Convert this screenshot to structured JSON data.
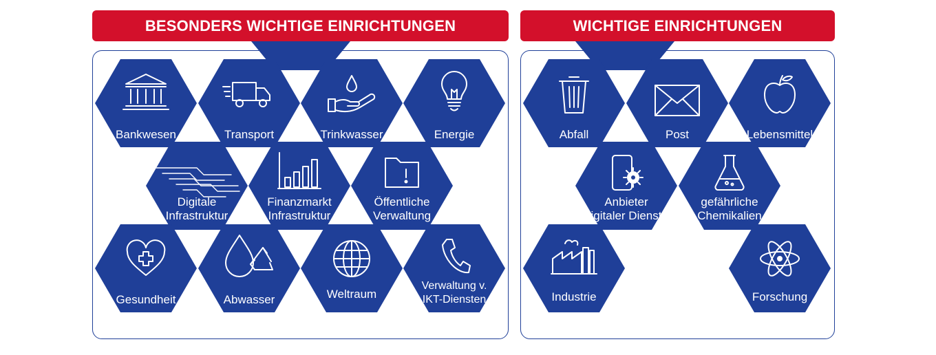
{
  "sections": {
    "left": {
      "title": "BESONDERS WICHTIGE EINRICHTUNGEN",
      "items": [
        {
          "id": "bankwesen",
          "lines": [
            "Bankwesen"
          ],
          "icon": "bank-icon"
        },
        {
          "id": "transport",
          "lines": [
            "Transport"
          ],
          "icon": "truck-icon"
        },
        {
          "id": "trinkwasser",
          "lines": [
            "Trinkwasser"
          ],
          "icon": "hand-water-drop-icon"
        },
        {
          "id": "energie",
          "lines": [
            "Energie"
          ],
          "icon": "light-bulb-icon"
        },
        {
          "id": "digitale-infrastruktur",
          "lines": [
            "Digitale",
            "Infrastruktur"
          ],
          "icon": "circuit-lines-icon"
        },
        {
          "id": "finanzmarkt-infrastruktur",
          "lines": [
            "Finanzmarkt",
            "Infrastruktur"
          ],
          "icon": "bar-chart-icon"
        },
        {
          "id": "oeffentliche-verwaltung",
          "lines": [
            "Öffentliche",
            "Verwaltung"
          ],
          "icon": "folder-alert-icon"
        },
        {
          "id": "gesundheit",
          "lines": [
            "Gesundheit"
          ],
          "icon": "heart-cross-icon"
        },
        {
          "id": "abwasser",
          "lines": [
            "Abwasser"
          ],
          "icon": "drop-recycle-icon"
        },
        {
          "id": "weltraum",
          "lines": [
            "Weltraum"
          ],
          "icon": "globe-icon"
        },
        {
          "id": "verwaltung-ikt",
          "lines": [
            "Verwaltung v.",
            "IKT-Diensten"
          ],
          "icon": "phone-icon"
        }
      ]
    },
    "right": {
      "title": "WICHTIGE EINRICHTUNGEN",
      "items": [
        {
          "id": "abfall",
          "lines": [
            "Abfall"
          ],
          "icon": "trash-can-icon"
        },
        {
          "id": "post",
          "lines": [
            "Post"
          ],
          "icon": "envelope-icon"
        },
        {
          "id": "lebensmittel",
          "lines": [
            "Lebensmittel"
          ],
          "icon": "apple-icon"
        },
        {
          "id": "anbieter-digitaler-dienste",
          "lines": [
            "Anbieter",
            "digitaler Dienste"
          ],
          "icon": "phone-gear-icon"
        },
        {
          "id": "gefaehrliche-chemikalien",
          "lines": [
            "gefährliche",
            "Chemikalien"
          ],
          "icon": "flask-icon"
        },
        {
          "id": "industrie",
          "lines": [
            "Industrie"
          ],
          "icon": "factory-icon"
        },
        {
          "id": "forschung",
          "lines": [
            "Forschung"
          ],
          "icon": "atom-icon"
        }
      ]
    }
  },
  "colors": {
    "banner": "#d3102b",
    "hexagon": "#1f3f98",
    "border": "#1f3f98"
  }
}
